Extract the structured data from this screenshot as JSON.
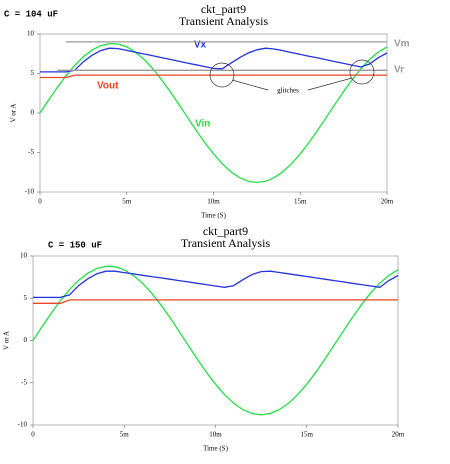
{
  "chart_data": [
    {
      "type": "line",
      "label": "C = 104 uF",
      "title": "ckt_part9",
      "subtitle": "Transient Analysis",
      "xlabel": "Time (S)",
      "ylabel": "V or A",
      "x": [
        0,
        0.0005,
        0.001,
        0.0015,
        0.002,
        0.0025,
        0.003,
        0.0035,
        0.004,
        0.0045,
        0.005,
        0.0055,
        0.006,
        0.0065,
        0.007,
        0.0075,
        0.008,
        0.0085,
        0.009,
        0.0095,
        0.01,
        0.0105,
        0.011,
        0.0115,
        0.012,
        0.0125,
        0.013,
        0.0135,
        0.014,
        0.0145,
        0.015,
        0.0155,
        0.016,
        0.0165,
        0.017,
        0.0175,
        0.018,
        0.0185,
        0.019,
        0.0195,
        0.02
      ],
      "series": [
        {
          "name": "Vin",
          "color": "#22dd44",
          "values": [
            0,
            1.65,
            3.24,
            4.72,
            6.02,
            7.12,
            7.96,
            8.52,
            8.78,
            8.73,
            8.37,
            7.71,
            6.78,
            5.61,
            4.24,
            2.72,
            1.1,
            -0.55,
            -2.19,
            -3.75,
            -5.17,
            -6.42,
            -7.43,
            -8.18,
            -8.64,
            -8.8,
            -8.64,
            -8.18,
            -7.43,
            -6.42,
            -5.17,
            -3.75,
            -2.19,
            -0.55,
            1.1,
            2.72,
            4.24,
            5.61,
            6.78,
            7.71,
            8.37
          ]
        },
        {
          "name": "Vx",
          "color": "#2233dd",
          "values": [
            5.2,
            5.2,
            5.2,
            5.2,
            5.4,
            6.5,
            7.3,
            7.9,
            8.2,
            8.15,
            7.92,
            7.7,
            7.47,
            7.24,
            7.01,
            6.78,
            6.55,
            6.32,
            6.1,
            5.87,
            5.64,
            5.6,
            6.3,
            7.0,
            7.6,
            8.0,
            8.2,
            8.1,
            7.9,
            7.65,
            7.42,
            7.19,
            6.97,
            6.74,
            6.51,
            6.28,
            6.05,
            5.82,
            6.2,
            7.0,
            7.6
          ]
        },
        {
          "name": "Vout",
          "color": "#ee4422",
          "values": [
            4.5,
            4.5,
            4.5,
            4.5,
            4.8,
            4.8,
            4.8,
            4.8,
            4.8,
            4.8,
            4.8,
            4.8,
            4.8,
            4.8,
            4.8,
            4.8,
            4.8,
            4.8,
            4.8,
            4.8,
            4.8,
            4.8,
            4.8,
            4.8,
            4.8,
            4.8,
            4.8,
            4.8,
            4.8,
            4.8,
            4.8,
            4.8,
            4.8,
            4.8,
            4.8,
            4.8,
            4.8,
            4.8,
            4.8,
            4.8,
            4.8
          ]
        },
        {
          "name": "Vm",
          "color": "#999999",
          "values": [
            null,
            null,
            null,
            9,
            9,
            9,
            9,
            9,
            9,
            9,
            9,
            9,
            9,
            9,
            9,
            9,
            9,
            9,
            9,
            9,
            9,
            9,
            9,
            9,
            9,
            9,
            9,
            9,
            9,
            9,
            9,
            9,
            9,
            9,
            9,
            9,
            9,
            9,
            9,
            9,
            9
          ]
        },
        {
          "name": "Vr",
          "color": "#999999",
          "values": [
            null,
            null,
            5.4,
            5.4,
            5.4,
            5.4,
            5.4,
            5.4,
            5.4,
            5.4,
            5.4,
            5.4,
            5.4,
            5.4,
            5.4,
            5.4,
            5.4,
            5.4,
            5.4,
            5.4,
            5.4,
            5.4,
            5.4,
            5.4,
            5.4,
            5.4,
            5.4,
            5.4,
            5.4,
            5.4,
            5.4,
            5.4,
            5.4,
            5.4,
            5.4,
            5.4,
            5.4,
            5.4,
            5.4,
            5.4,
            5.4
          ]
        }
      ],
      "annotations": [
        "glitches"
      ],
      "xlim": [
        0,
        0.02
      ],
      "xticks": [
        0,
        {
          "value": 0.005,
          "label": "5m"
        },
        {
          "value": 0.01,
          "label": "10m"
        },
        {
          "value": 0.015,
          "label": "15m"
        },
        {
          "value": 0.02,
          "label": "20m"
        }
      ],
      "ylim": [
        -10,
        10
      ],
      "yticks": [
        -10,
        -5,
        0,
        5,
        10
      ]
    },
    {
      "type": "line",
      "label": "C = 150 uF",
      "title": "ckt_part9",
      "subtitle": "Transient Analysis",
      "xlabel": "Time (S)",
      "ylabel": "V or A",
      "x": [
        0,
        0.0005,
        0.001,
        0.0015,
        0.002,
        0.0025,
        0.003,
        0.0035,
        0.004,
        0.0045,
        0.005,
        0.0055,
        0.006,
        0.0065,
        0.007,
        0.0075,
        0.008,
        0.0085,
        0.009,
        0.0095,
        0.01,
        0.0105,
        0.011,
        0.0115,
        0.012,
        0.0125,
        0.013,
        0.0135,
        0.014,
        0.0145,
        0.015,
        0.0155,
        0.016,
        0.0165,
        0.017,
        0.0175,
        0.018,
        0.0185,
        0.019,
        0.0195,
        0.02
      ],
      "series": [
        {
          "color": "#22dd44",
          "values": [
            0,
            1.65,
            3.24,
            4.72,
            6.02,
            7.12,
            7.96,
            8.52,
            8.78,
            8.73,
            8.37,
            7.71,
            6.78,
            5.61,
            4.24,
            2.72,
            1.1,
            -0.55,
            -2.19,
            -3.75,
            -5.17,
            -6.42,
            -7.43,
            -8.18,
            -8.64,
            -8.8,
            -8.64,
            -8.18,
            -7.43,
            -6.42,
            -5.17,
            -3.75,
            -2.19,
            -0.55,
            1.1,
            2.72,
            4.24,
            5.61,
            6.78,
            7.71,
            8.37
          ]
        },
        {
          "color": "#2233dd",
          "values": [
            5.1,
            5.1,
            5.1,
            5.1,
            5.4,
            6.5,
            7.3,
            7.9,
            8.2,
            8.2,
            8.04,
            7.88,
            7.72,
            7.56,
            7.41,
            7.25,
            7.09,
            6.93,
            6.77,
            6.61,
            6.45,
            6.29,
            6.5,
            7.2,
            7.8,
            8.15,
            8.2,
            8.05,
            7.89,
            7.73,
            7.57,
            7.41,
            7.25,
            7.09,
            6.93,
            6.77,
            6.61,
            6.45,
            6.3,
            7.1,
            7.7
          ]
        },
        {
          "color": "#ee4422",
          "values": [
            4.4,
            4.4,
            4.4,
            4.4,
            4.8,
            4.8,
            4.8,
            4.8,
            4.8,
            4.8,
            4.8,
            4.8,
            4.8,
            4.8,
            4.8,
            4.8,
            4.8,
            4.8,
            4.8,
            4.8,
            4.8,
            4.8,
            4.8,
            4.8,
            4.8,
            4.8,
            4.8,
            4.8,
            4.8,
            4.8,
            4.8,
            4.8,
            4.8,
            4.8,
            4.8,
            4.8,
            4.8,
            4.8,
            4.8,
            4.8,
            4.8
          ]
        }
      ],
      "xlim": [
        0,
        0.02
      ],
      "xticks": [
        0,
        {
          "value": 0.005,
          "label": "5m"
        },
        {
          "value": 0.01,
          "label": "10m"
        },
        {
          "value": 0.015,
          "label": "15m"
        },
        {
          "value": 0.02,
          "label": "20m"
        }
      ],
      "ylim": [
        -10,
        10
      ],
      "yticks": [
        -10,
        -5,
        0,
        5,
        10
      ]
    }
  ]
}
